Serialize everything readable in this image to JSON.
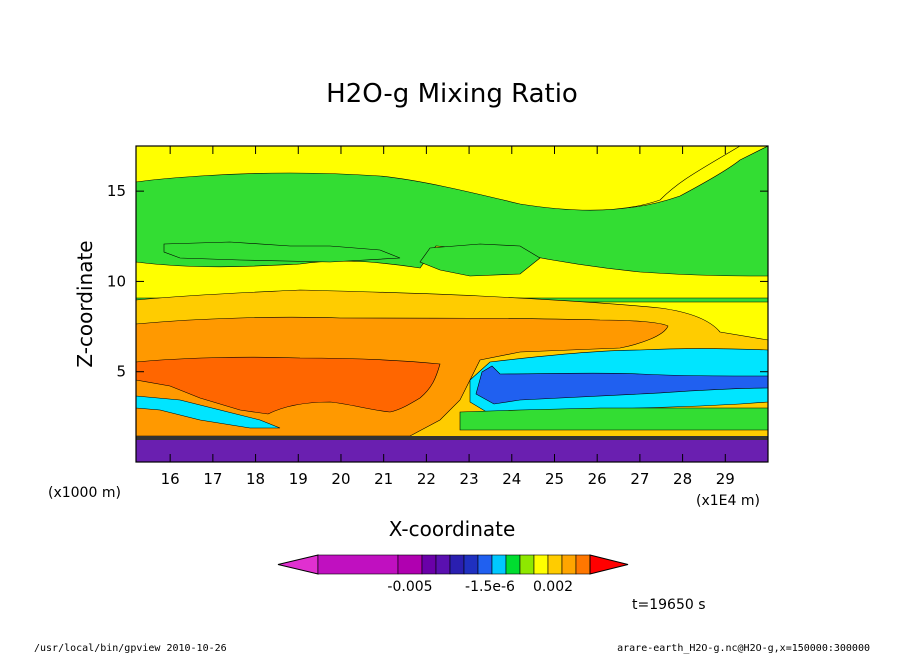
{
  "chart_data": {
    "type": "heatmap",
    "title": "H2O-g Mixing Ratio",
    "xlabel": "X-coordinate",
    "ylabel": "Z-coordinate",
    "x_unit_left": "(x1000 m)",
    "x_unit_right": "(x1E4 m)",
    "xlim": [
      15.2,
      30
    ],
    "ylim": [
      0,
      17.5
    ],
    "x_ticks": [
      "16",
      "17",
      "18",
      "19",
      "20",
      "21",
      "22",
      "23",
      "24",
      "25",
      "26",
      "27",
      "28",
      "29"
    ],
    "y_ticks": [
      "5",
      "10",
      "15"
    ],
    "time_label": "t=19650 s",
    "colorbar": {
      "labels": [
        "-0.005",
        "-1.5e-6",
        "0.002"
      ],
      "colors": [
        "#e030d0",
        "#c010c0",
        "#b000b0",
        "#6a00a8",
        "#5a10b0",
        "#2a1fb0",
        "#1f30c0",
        "#2060f0",
        "#00c8ff",
        "#00dd30",
        "#8ee800",
        "#ffff00",
        "#ffcc00",
        "#ffa500",
        "#ff7700",
        "#ff0000"
      ]
    },
    "bands": [
      {
        "zone": "upper-yellow",
        "color": "#ffff00"
      },
      {
        "zone": "green",
        "color": "#33dd33"
      },
      {
        "zone": "gold",
        "color": "#ffcc00"
      },
      {
        "zone": "orange",
        "color": "#ff9900"
      },
      {
        "zone": "dark-orange",
        "color": "#ff6600"
      },
      {
        "zone": "cyan",
        "color": "#00e5ff"
      },
      {
        "zone": "blue",
        "color": "#2060f0"
      },
      {
        "zone": "purple",
        "color": "#6a1fb0"
      }
    ]
  },
  "footer": {
    "left": "/usr/local/bin/gpview   2010-10-26",
    "right": "arare-earth_H2O-g.nc@H2O-g,x=150000:300000"
  }
}
